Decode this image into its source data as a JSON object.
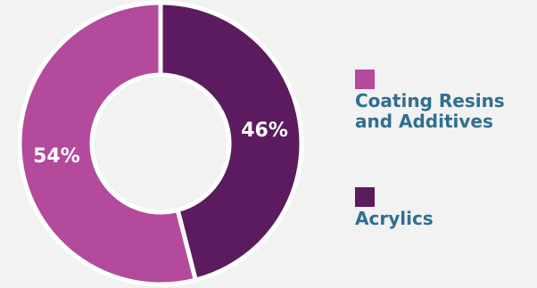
{
  "chart_data": {
    "type": "pie",
    "subtype": "donut",
    "slices": [
      {
        "label": "Acrylics",
        "value": 46,
        "display": "46%",
        "color": "#5b1b5e"
      },
      {
        "label": "Coating Resins\nand Additives",
        "value": 54,
        "display": "54%",
        "color": "#b34a9c"
      }
    ],
    "legend": {
      "placement": "right",
      "items": [
        {
          "label": "Coating Resins\nand Additives",
          "color": "#b34a9c"
        },
        {
          "label": "Acrylics",
          "color": "#5b1b5e"
        }
      ]
    },
    "colors": {
      "background": "#f2f2f2",
      "separator": "#ffffff",
      "legend_text": "#2f6f8f"
    }
  }
}
